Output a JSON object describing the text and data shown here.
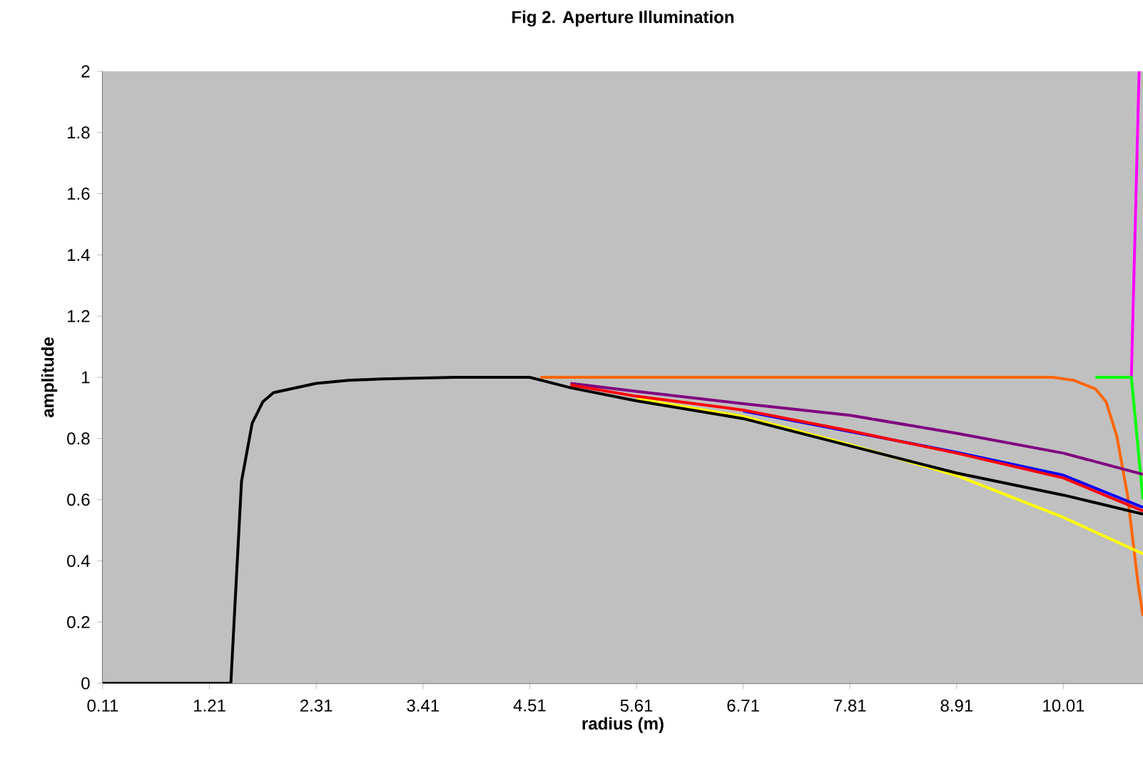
{
  "chart_data": {
    "type": "line",
    "title": "Fig 2. Aperture Illumination",
    "xlabel": "radius (m)",
    "ylabel": "amplitude",
    "xlim": [
      0.11,
      10.83
    ],
    "xticks": [
      0.11,
      1.21,
      2.31,
      3.41,
      4.51,
      5.61,
      6.71,
      7.81,
      8.91,
      10.01
    ],
    "ylim": [
      0,
      2
    ],
    "yticks": [
      0,
      0.2,
      0.4,
      0.6,
      0.8,
      1,
      1.2,
      1.4,
      1.6,
      1.8,
      2
    ],
    "grid": false,
    "marker": "none",
    "line_style": "solid",
    "series": [
      {
        "color": "#ff6600",
        "x": [
          4.62,
          9.9,
          10.12,
          10.34,
          10.45,
          10.56,
          10.67,
          10.78,
          10.83
        ],
        "values": [
          1,
          1,
          0.99,
          0.962,
          0.92,
          0.808,
          0.615,
          0.323,
          0.22
        ]
      },
      {
        "color": "#ff00ff",
        "x": [
          10.71,
          10.79
        ],
        "values": [
          1,
          2
        ]
      },
      {
        "color": "#00ff00",
        "x": [
          10.34,
          10.71,
          10.83
        ],
        "values": [
          1,
          1,
          0.6
        ]
      },
      {
        "color": "#800080",
        "x": [
          4.93,
          5.61,
          6.71,
          7.81,
          8.91,
          10.01,
          10.83
        ],
        "values": [
          0.98,
          0.954,
          0.914,
          0.876,
          0.817,
          0.752,
          0.683
        ]
      },
      {
        "color": "#ffff00",
        "x": [
          5.61,
          6.71,
          7.81,
          8.91,
          10.01,
          10.83
        ],
        "values": [
          0.93,
          0.872,
          0.78,
          0.679,
          0.542,
          0.423
        ]
      },
      {
        "color": "#0000ff",
        "x": [
          6.71,
          8.91,
          10.01,
          10.83
        ],
        "values": [
          0.89,
          0.755,
          0.68,
          0.575
        ]
      },
      {
        "color": "#ff0000",
        "x": [
          4.93,
          5.61,
          6.71,
          7.81,
          8.91,
          10.01,
          10.83
        ],
        "values": [
          0.975,
          0.938,
          0.893,
          0.825,
          0.752,
          0.671,
          0.563
        ]
      },
      {
        "color": "#000000",
        "x": [
          0.11,
          1.43,
          1.54,
          1.65,
          1.76,
          1.87,
          2.09,
          2.31,
          2.64,
          3.0,
          3.74,
          4.51,
          4.93,
          5.61,
          6.71,
          7.81,
          8.91,
          10.01,
          10.83
        ],
        "values": [
          0,
          0,
          0.66,
          0.85,
          0.92,
          0.95,
          0.965,
          0.98,
          0.99,
          0.995,
          1,
          1,
          0.966,
          0.923,
          0.865,
          0.776,
          0.687,
          0.615,
          0.553
        ]
      }
    ]
  }
}
